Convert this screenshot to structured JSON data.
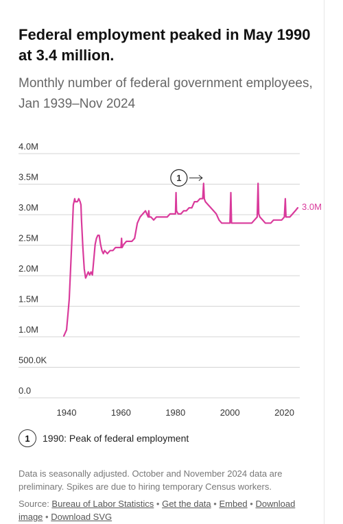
{
  "header": {
    "title": "Federal employment peaked in May 1990 at 3.4 million.",
    "subtitle": "Monthly number of federal government employees, Jan 1939–Nov 2024"
  },
  "colors": {
    "series": "#d93a9b",
    "grid": "#d4d4d4",
    "annotation": "#222222"
  },
  "chart_data": {
    "type": "line",
    "title": "Federal employment peaked in May 1990 at 3.4 million.",
    "subtitle": "Monthly number of federal government employees, Jan 1939–Nov 2024",
    "xlabel": "",
    "ylabel": "",
    "xlim": [
      1939,
      2024.9
    ],
    "ylim": [
      0,
      4000000
    ],
    "y_ticks": [
      0,
      500000,
      1000000,
      1500000,
      2000000,
      2500000,
      3000000,
      3500000,
      4000000
    ],
    "y_tick_labels": [
      "0.0",
      "500.0K",
      "1.0M",
      "1.5M",
      "2.0M",
      "2.5M",
      "3.0M",
      "3.5M",
      "4.0M"
    ],
    "x_ticks": [
      1940,
      1960,
      1980,
      2000,
      2020
    ],
    "x_tick_labels": [
      "1940",
      "1960",
      "1980",
      "2000",
      "2020"
    ],
    "grid": "horizontal",
    "end_label": "3.0M",
    "series": [
      {
        "values_unit": "employees",
        "x": [
          1939.0,
          1939.5,
          1940.0,
          1940.5,
          1941.0,
          1941.5,
          1942.0,
          1942.5,
          1943.0,
          1943.25,
          1943.5,
          1944.0,
          1944.5,
          1945.0,
          1945.3,
          1945.5,
          1946.0,
          1946.5,
          1947.0,
          1947.5,
          1948.0,
          1948.5,
          1949.0,
          1949.5,
          1950.0,
          1950.5,
          1951.0,
          1951.5,
          1952.0,
          1952.5,
          1953.0,
          1953.5,
          1954.0,
          1955.0,
          1956.0,
          1957.0,
          1958.0,
          1959.0,
          1960.0,
          1960.2,
          1960.4,
          1961.0,
          1962.0,
          1963.0,
          1964.0,
          1965.0,
          1966.0,
          1967.0,
          1968.0,
          1969.0,
          1970.0,
          1970.2,
          1970.4,
          1971.0,
          1972.0,
          1973.0,
          1974.0,
          1975.0,
          1976.0,
          1977.0,
          1978.0,
          1979.0,
          1980.0,
          1980.2,
          1980.4,
          1981.0,
          1982.0,
          1983.0,
          1984.0,
          1985.0,
          1986.0,
          1987.0,
          1988.0,
          1989.0,
          1990.0,
          1990.35,
          1990.6,
          1991.0,
          1992.0,
          1993.0,
          1994.0,
          1995.0,
          1996.0,
          1997.0,
          1998.0,
          1999.0,
          2000.0,
          2000.35,
          2000.6,
          2001.0,
          2002.0,
          2003.0,
          2004.0,
          2005.0,
          2006.0,
          2007.0,
          2008.0,
          2009.0,
          2010.0,
          2010.35,
          2010.6,
          2011.0,
          2012.0,
          2013.0,
          2014.0,
          2015.0,
          2016.0,
          2017.0,
          2018.0,
          2019.0,
          2020.0,
          2020.35,
          2020.6,
          2021.0,
          2022.0,
          2023.0,
          2024.0,
          2024.9
        ],
        "y": [
          900000,
          950000,
          1000000,
          1250000,
          1500000,
          2000000,
          2500000,
          3050000,
          3150000,
          3100000,
          3100000,
          3100000,
          3150000,
          3100000,
          3050000,
          2800000,
          2350000,
          2000000,
          1850000,
          1900000,
          1950000,
          1900000,
          1950000,
          1900000,
          2150000,
          2400000,
          2500000,
          2550000,
          2550000,
          2400000,
          2300000,
          2250000,
          2300000,
          2250000,
          2300000,
          2300000,
          2350000,
          2350000,
          2350000,
          2500000,
          2350000,
          2400000,
          2450000,
          2450000,
          2450000,
          2500000,
          2750000,
          2850000,
          2900000,
          2950000,
          2850000,
          2950000,
          2850000,
          2850000,
          2800000,
          2850000,
          2850000,
          2850000,
          2850000,
          2850000,
          2900000,
          2900000,
          2900000,
          3250000,
          2950000,
          2900000,
          2900000,
          2950000,
          2950000,
          3000000,
          3000000,
          3100000,
          3100000,
          3150000,
          3150000,
          3400000,
          3150000,
          3100000,
          3050000,
          3000000,
          2950000,
          2900000,
          2800000,
          2750000,
          2750000,
          2750000,
          2750000,
          3250000,
          2750000,
          2750000,
          2750000,
          2750000,
          2750000,
          2750000,
          2750000,
          2750000,
          2750000,
          2800000,
          2850000,
          3400000,
          2900000,
          2850000,
          2800000,
          2750000,
          2750000,
          2750000,
          2800000,
          2800000,
          2800000,
          2800000,
          2850000,
          3150000,
          2850000,
          2850000,
          2850000,
          2900000,
          2950000,
          3000000
        ]
      }
    ],
    "annotations": [
      {
        "id": "1",
        "x": 1990.35,
        "y": 3400000,
        "text": "1990: Peak of federal employment"
      }
    ]
  },
  "legend": {
    "marker": "1",
    "text": "1990: Peak of federal employment"
  },
  "footnote": "Data is seasonally adjusted. October and November 2024 data are preliminary. Spikes are due to hiring temporary Census workers.",
  "source": {
    "prefix": "Source: ",
    "bls_link": "Bureau of Labor Statistics",
    "get_data_link": "Get the data",
    "embed_link": "Embed",
    "download_image_link": "Download image",
    "download_svg_link": "Download SVG",
    "separator": "•"
  }
}
